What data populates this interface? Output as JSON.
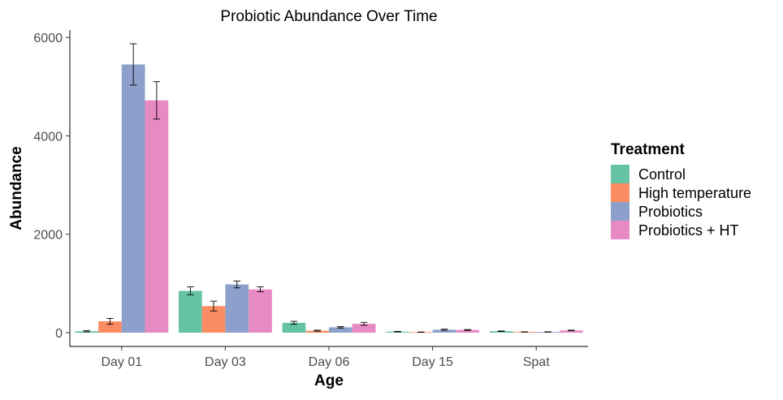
{
  "chart_data": {
    "type": "bar",
    "title": "Probiotic Abundance Over Time",
    "xlabel": "Age",
    "ylabel": "Abundance",
    "categories": [
      "Day 01",
      "Day 03",
      "Day 06",
      "Day 15",
      "Spat"
    ],
    "ylim": [
      -280,
      6150
    ],
    "yticks": [
      0,
      2000,
      4000,
      6000
    ],
    "ytick_labels": [
      "0",
      "2000",
      "4000",
      "6000"
    ],
    "grid": false,
    "legend": {
      "title": "Treatment",
      "position": "right"
    },
    "series": [
      {
        "name": "Control",
        "color": "#66c2a5",
        "values": [
          30,
          850,
          200,
          20,
          30
        ],
        "err": [
          15,
          80,
          30,
          5,
          5
        ]
      },
      {
        "name": "High temperature",
        "color": "#fc8d62",
        "values": [
          230,
          540,
          40,
          10,
          15
        ],
        "err": [
          60,
          100,
          10,
          3,
          3
        ]
      },
      {
        "name": "Probiotics",
        "color": "#8da0cb",
        "values": [
          5450,
          980,
          110,
          60,
          15
        ],
        "err": [
          420,
          70,
          15,
          12,
          3
        ]
      },
      {
        "name": "Probiotics + HT",
        "color": "#e78ac3",
        "values": [
          4720,
          880,
          180,
          55,
          45
        ],
        "err": [
          380,
          50,
          30,
          8,
          5
        ]
      }
    ]
  }
}
